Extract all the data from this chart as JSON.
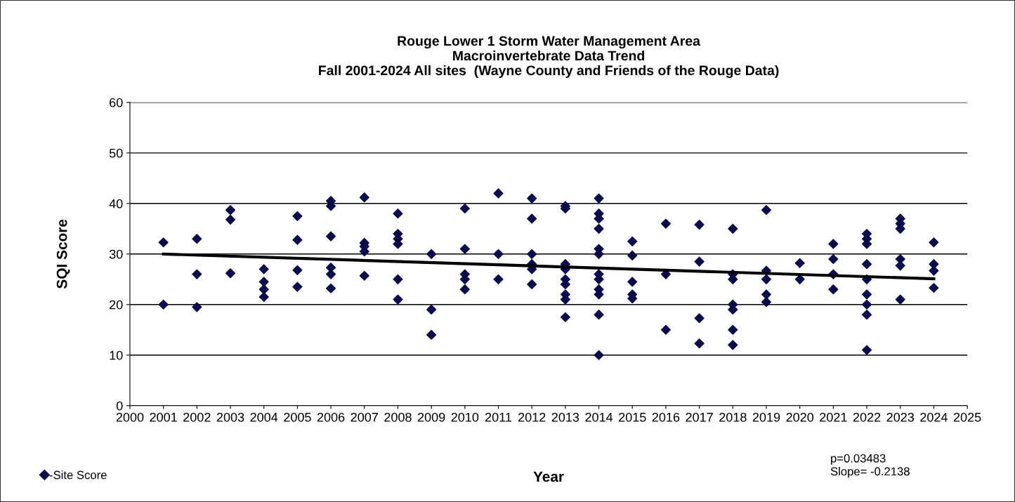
{
  "chart_data": {
    "type": "scatter",
    "title": "Rouge Lower 1 Storm Water Management Area\nMacroinvertebrate Data Trend\nFall 2001-2024 All sites  (Wayne County and Friends of the Rouge Data)",
    "xlabel": "Year",
    "ylabel": "SQI Score",
    "xlim": [
      2000,
      2025
    ],
    "xticks": [
      2000,
      2001,
      2002,
      2003,
      2004,
      2005,
      2006,
      2007,
      2008,
      2009,
      2010,
      2011,
      2012,
      2013,
      2014,
      2015,
      2016,
      2017,
      2018,
      2019,
      2020,
      2021,
      2022,
      2023,
      2024,
      2025
    ],
    "ylim": [
      0,
      60
    ],
    "yticks": [
      0,
      10,
      20,
      30,
      40,
      50,
      60
    ],
    "grid": "y",
    "legend": "bottom left",
    "annotations": [
      "p=0.03483",
      "Slope= -0.2138"
    ],
    "series": [
      {
        "name": "-Site Score",
        "color": "#0a0a4a",
        "marker": "diamond",
        "x": [
          2001,
          2001,
          2002,
          2002,
          2002,
          2003,
          2003,
          2003,
          2004,
          2004,
          2004,
          2004,
          2005,
          2005,
          2005,
          2005,
          2006,
          2006,
          2006,
          2006,
          2006,
          2006,
          2007,
          2007,
          2007,
          2007,
          2007,
          2008,
          2008,
          2008,
          2008,
          2008,
          2008,
          2009,
          2009,
          2009,
          2010,
          2010,
          2010,
          2010,
          2010,
          2011,
          2011,
          2011,
          2012,
          2012,
          2012,
          2012,
          2012,
          2012,
          2013,
          2013,
          2013,
          2013,
          2013,
          2013,
          2013,
          2013,
          2013,
          2014,
          2014,
          2014,
          2014,
          2014,
          2014,
          2014,
          2014,
          2014,
          2014,
          2014,
          2014,
          2015,
          2015,
          2015,
          2015,
          2015,
          2016,
          2016,
          2016,
          2017,
          2017,
          2017,
          2017,
          2018,
          2018,
          2018,
          2018,
          2018,
          2018,
          2018,
          2019,
          2019,
          2019,
          2019,
          2019,
          2020,
          2020,
          2021,
          2021,
          2021,
          2021,
          2022,
          2022,
          2022,
          2022,
          2022,
          2022,
          2022,
          2022,
          2022,
          2023,
          2023,
          2023,
          2023,
          2023,
          2023,
          2024,
          2024,
          2024,
          2024
        ],
        "values": [
          32.3,
          20,
          33,
          26,
          19.5,
          38.7,
          36.8,
          26.2,
          27,
          24.5,
          23,
          21.5,
          37.5,
          32.8,
          26.8,
          23.5,
          40.5,
          39.5,
          33.5,
          27.3,
          26,
          23.2,
          41.2,
          32.2,
          31.5,
          30.5,
          25.7,
          38,
          34,
          33,
          32,
          25,
          21,
          30,
          19,
          14,
          39,
          31,
          26,
          25,
          23,
          42,
          30,
          25,
          41,
          37,
          30,
          28,
          27,
          24,
          39.5,
          39,
          28,
          27,
          25,
          24,
          22,
          21,
          17.5,
          41,
          38,
          37,
          35,
          31,
          30,
          26,
          25,
          23,
          22,
          18,
          10,
          32.5,
          29.7,
          24.5,
          22,
          21.2,
          36,
          26,
          15,
          35.8,
          28.5,
          17.3,
          12.3,
          35,
          26,
          25,
          20,
          19,
          15,
          12,
          38.7,
          26.7,
          25,
          22,
          20.5,
          28.2,
          25,
          32,
          29,
          26,
          23,
          34,
          33,
          32,
          28,
          25,
          22,
          20,
          18,
          11,
          37,
          36,
          35,
          29,
          27.7,
          21,
          32.3,
          28,
          26.7,
          23.3
        ]
      },
      {
        "color": "#000000",
        "type": "line",
        "marker": "none",
        "x": [
          2001,
          2024
        ],
        "values": [
          30.0,
          25.1
        ]
      }
    ]
  }
}
